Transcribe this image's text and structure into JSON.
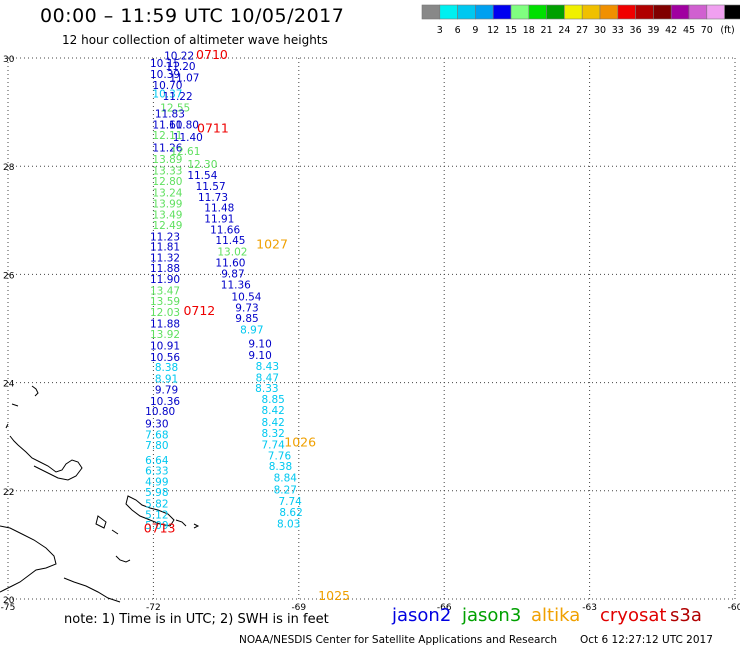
{
  "header": {
    "title": "00:00 – 11:59 UTC 10/05/2017",
    "subtitle": "12 hour collection of altimeter wave heights"
  },
  "legend": {
    "unit": "(ft)",
    "colors": [
      "#888888",
      "#00f0f0",
      "#00c8f0",
      "#00a0f0",
      "#0000f0",
      "#80ff80",
      "#00e000",
      "#00a000",
      "#f0f000",
      "#f0c000",
      "#f09000",
      "#f00000",
      "#b00000",
      "#800000",
      "#a000a0",
      "#d060d0",
      "#f0a0f0",
      "#000000"
    ],
    "labels": [
      "3",
      "6",
      "9",
      "12",
      "15",
      "18",
      "21",
      "24",
      "27",
      "30",
      "33",
      "36",
      "39",
      "42",
      "45",
      "70"
    ]
  },
  "map": {
    "lon_min": -75,
    "lon_max": -60,
    "lat_min": 20,
    "lat_max": 30,
    "lon_ticks": [
      "-75",
      "-72",
      "-69",
      "-66",
      "-63",
      "-60"
    ],
    "lat_ticks": [
      "30",
      "28",
      "26",
      "24",
      "22",
      "20"
    ]
  },
  "tracks": [
    {
      "label": "0710",
      "label_color": "#ee0000",
      "label_pos": [
        -71.12,
        29.98
      ]
    },
    {
      "label": "0711",
      "label_color": "#ee0000",
      "label_pos": [
        -71.1,
        28.62
      ]
    },
    {
      "label": "0712",
      "label_color": "#ee0000",
      "label_pos": [
        -71.38,
        25.25
      ]
    },
    {
      "label": "0713",
      "label_color": "#ee0000",
      "label_pos": [
        -72.2,
        21.23
      ]
    },
    {
      "label": "1027",
      "label_color": "#f0a000",
      "label_pos": [
        -69.88,
        26.48
      ]
    },
    {
      "label": "1026",
      "label_color": "#f0a000",
      "label_pos": [
        -69.3,
        22.82
      ]
    },
    {
      "label": "1025",
      "label_color": "#f0a000",
      "label_pos": [
        -68.6,
        19.98
      ]
    }
  ],
  "swh_labels": [
    {
      "v": "10.22",
      "lon": -71.78,
      "lat": 29.97,
      "c": "#0000c8"
    },
    {
      "v": "10.15",
      "lon": -72.07,
      "lat": 29.83,
      "c": "#0000c8"
    },
    {
      "v": "11.20",
      "lon": -71.75,
      "lat": 29.78,
      "c": "#0000c8"
    },
    {
      "v": "10.39",
      "lon": -72.07,
      "lat": 29.63,
      "c": "#0000c8"
    },
    {
      "v": "11.07",
      "lon": -71.67,
      "lat": 29.57,
      "c": "#0000c8"
    },
    {
      "v": "10.70",
      "lon": -72.02,
      "lat": 29.43,
      "c": "#0000c8"
    },
    {
      "v": "10.37",
      "lon": -72.02,
      "lat": 29.27,
      "c": "#00c8f0"
    },
    {
      "v": "11.22",
      "lon": -71.81,
      "lat": 29.22,
      "c": "#0000c8"
    },
    {
      "v": "12.55",
      "lon": -71.86,
      "lat": 29.01,
      "c": "#60e060"
    },
    {
      "v": "11.83",
      "lon": -71.97,
      "lat": 28.9,
      "c": "#0000c8"
    },
    {
      "v": "11.60",
      "lon": -72.02,
      "lat": 28.7,
      "c": "#0000c8"
    },
    {
      "v": "11.80",
      "lon": -71.68,
      "lat": 28.7,
      "c": "#0000c8"
    },
    {
      "v": "12.11",
      "lon": -72.02,
      "lat": 28.5,
      "c": "#60e060"
    },
    {
      "v": "11.40",
      "lon": -71.6,
      "lat": 28.47,
      "c": "#0000c8"
    },
    {
      "v": "11.26",
      "lon": -72.02,
      "lat": 28.27,
      "c": "#0000c8"
    },
    {
      "v": "12.61",
      "lon": -71.65,
      "lat": 28.21,
      "c": "#60e060"
    },
    {
      "v": "13.89",
      "lon": -72.02,
      "lat": 28.06,
      "c": "#60e060"
    },
    {
      "v": "12.30",
      "lon": -71.3,
      "lat": 27.97,
      "c": "#60e060"
    },
    {
      "v": "13.33",
      "lon": -72.02,
      "lat": 27.85,
      "c": "#60e060"
    },
    {
      "v": "11.54",
      "lon": -71.3,
      "lat": 27.76,
      "c": "#0000c8"
    },
    {
      "v": "12.80",
      "lon": -72.02,
      "lat": 27.65,
      "c": "#60e060"
    },
    {
      "v": "11.57",
      "lon": -71.13,
      "lat": 27.56,
      "c": "#0000c8"
    },
    {
      "v": "13.24",
      "lon": -72.02,
      "lat": 27.44,
      "c": "#60e060"
    },
    {
      "v": "11.73",
      "lon": -71.08,
      "lat": 27.36,
      "c": "#0000c8"
    },
    {
      "v": "13.99",
      "lon": -72.02,
      "lat": 27.24,
      "c": "#60e060"
    },
    {
      "v": "11.48",
      "lon": -70.95,
      "lat": 27.16,
      "c": "#0000c8"
    },
    {
      "v": "13.49",
      "lon": -72.02,
      "lat": 27.03,
      "c": "#60e060"
    },
    {
      "v": "11.91",
      "lon": -70.95,
      "lat": 26.96,
      "c": "#0000c8"
    },
    {
      "v": "12.49",
      "lon": -72.02,
      "lat": 26.84,
      "c": "#60e060"
    },
    {
      "v": "11.66",
      "lon": -70.83,
      "lat": 26.76,
      "c": "#0000c8"
    },
    {
      "v": "11.23",
      "lon": -72.07,
      "lat": 26.63,
      "c": "#0000c8"
    },
    {
      "v": "11.45",
      "lon": -70.72,
      "lat": 26.56,
      "c": "#0000c8"
    },
    {
      "v": "11.81",
      "lon": -72.07,
      "lat": 26.44,
      "c": "#0000c8"
    },
    {
      "v": "13.02",
      "lon": -70.68,
      "lat": 26.35,
      "c": "#60e060"
    },
    {
      "v": "11.32",
      "lon": -72.07,
      "lat": 26.24,
      "c": "#0000c8"
    },
    {
      "v": "11.60",
      "lon": -70.72,
      "lat": 26.15,
      "c": "#0000c8"
    },
    {
      "v": "11.88",
      "lon": -72.07,
      "lat": 26.04,
      "c": "#0000c8"
    },
    {
      "v": "9.87",
      "lon": -70.6,
      "lat": 25.94,
      "c": "#0000c8"
    },
    {
      "v": "11.90",
      "lon": -72.07,
      "lat": 25.84,
      "c": "#0000c8"
    },
    {
      "v": "11.36",
      "lon": -70.61,
      "lat": 25.74,
      "c": "#0000c8"
    },
    {
      "v": "13.47",
      "lon": -72.07,
      "lat": 25.63,
      "c": "#60e060"
    },
    {
      "v": "10.54",
      "lon": -70.39,
      "lat": 25.52,
      "c": "#0000c8"
    },
    {
      "v": "13.59",
      "lon": -72.07,
      "lat": 25.43,
      "c": "#60e060"
    },
    {
      "v": "12.03",
      "lon": -72.07,
      "lat": 25.23,
      "c": "#60e060"
    },
    {
      "v": "9.73",
      "lon": -70.31,
      "lat": 25.31,
      "c": "#0000c8"
    },
    {
      "v": "11.88",
      "lon": -72.07,
      "lat": 25.02,
      "c": "#0000c8"
    },
    {
      "v": "9.85",
      "lon": -70.31,
      "lat": 25.12,
      "c": "#0000c8"
    },
    {
      "v": "13.92",
      "lon": -72.07,
      "lat": 24.82,
      "c": "#60e060"
    },
    {
      "v": "8.97",
      "lon": -70.21,
      "lat": 24.91,
      "c": "#00c8f0"
    },
    {
      "v": "10.91",
      "lon": -72.07,
      "lat": 24.61,
      "c": "#0000c8"
    },
    {
      "v": "9.10",
      "lon": -70.04,
      "lat": 24.65,
      "c": "#0000c8"
    },
    {
      "v": "10.56",
      "lon": -72.07,
      "lat": 24.4,
      "c": "#0000c8"
    },
    {
      "v": "9.10",
      "lon": -70.04,
      "lat": 24.44,
      "c": "#0000c8"
    },
    {
      "v": "8.38",
      "lon": -71.97,
      "lat": 24.21,
      "c": "#00c8f0"
    },
    {
      "v": "8.43",
      "lon": -69.89,
      "lat": 24.23,
      "c": "#00c8f0"
    },
    {
      "v": "8.91",
      "lon": -71.97,
      "lat": 24.0,
      "c": "#00c8f0"
    },
    {
      "v": "8.47",
      "lon": -69.89,
      "lat": 24.02,
      "c": "#00c8f0"
    },
    {
      "v": "9.79",
      "lon": -71.97,
      "lat": 23.8,
      "c": "#0000c8"
    },
    {
      "v": "8.33",
      "lon": -69.9,
      "lat": 23.83,
      "c": "#00c8f0"
    },
    {
      "v": "10.36",
      "lon": -72.07,
      "lat": 23.59,
      "c": "#0000c8"
    },
    {
      "v": "8.85",
      "lon": -69.77,
      "lat": 23.62,
      "c": "#00c8f0"
    },
    {
      "v": "10.80",
      "lon": -72.17,
      "lat": 23.4,
      "c": "#0000c8"
    },
    {
      "v": "8.42",
      "lon": -69.77,
      "lat": 23.42,
      "c": "#00c8f0"
    },
    {
      "v": "9.30",
      "lon": -72.17,
      "lat": 23.17,
      "c": "#0000c8"
    },
    {
      "v": "8.42",
      "lon": -69.77,
      "lat": 23.2,
      "c": "#00c8f0"
    },
    {
      "v": "7.68",
      "lon": -72.17,
      "lat": 22.97,
      "c": "#00c8f0"
    },
    {
      "v": "8.32",
      "lon": -69.77,
      "lat": 22.99,
      "c": "#00c8f0"
    },
    {
      "v": "7.80",
      "lon": -72.17,
      "lat": 22.77,
      "c": "#00c8f0"
    },
    {
      "v": "7.74",
      "lon": -69.77,
      "lat": 22.78,
      "c": "#00c8f0"
    },
    {
      "v": "6.64",
      "lon": -72.17,
      "lat": 22.5,
      "c": "#00c8f0"
    },
    {
      "v": "7.76",
      "lon": -69.64,
      "lat": 22.58,
      "c": "#00c8f0"
    },
    {
      "v": "6.33",
      "lon": -72.17,
      "lat": 22.3,
      "c": "#00c8f0"
    },
    {
      "v": "8.38",
      "lon": -69.62,
      "lat": 22.38,
      "c": "#00c8f0"
    },
    {
      "v": "4.99",
      "lon": -72.17,
      "lat": 22.1,
      "c": "#00c8f0"
    },
    {
      "v": "8.84",
      "lon": -69.52,
      "lat": 22.17,
      "c": "#00c8f0"
    },
    {
      "v": "5.98",
      "lon": -72.17,
      "lat": 21.9,
      "c": "#00c8f0"
    },
    {
      "v": "8.27",
      "lon": -69.52,
      "lat": 21.95,
      "c": "#00c8f0"
    },
    {
      "v": "5.82",
      "lon": -72.17,
      "lat": 21.69,
      "c": "#00c8f0"
    },
    {
      "v": "7.74",
      "lon": -69.42,
      "lat": 21.74,
      "c": "#00c8f0"
    },
    {
      "v": "5.12",
      "lon": -72.17,
      "lat": 21.49,
      "c": "#00c8f0"
    },
    {
      "v": "8.62",
      "lon": -69.4,
      "lat": 21.53,
      "c": "#00c8f0"
    },
    {
      "v": "5.09",
      "lon": -72.17,
      "lat": 21.29,
      "c": "#00c8f0"
    },
    {
      "v": "8.03",
      "lon": -69.45,
      "lat": 21.32,
      "c": "#00c8f0"
    }
  ],
  "satellites": [
    {
      "name": "jason2",
      "color": "#0000e0"
    },
    {
      "name": "jason3",
      "color": "#00a000"
    },
    {
      "name": "altika",
      "color": "#f0a000"
    },
    {
      "name": "cryosat",
      "color": "#e00000"
    },
    {
      "name": "s3a",
      "color": "#b00000"
    }
  ],
  "footer": {
    "note": "note: 1) Time is in UTC; 2) SWH is in feet",
    "credit": "NOAA/NESDIS Center for Satellite Applications and Research",
    "timestamp": "Oct  6 12:27:12 UTC 2017"
  }
}
